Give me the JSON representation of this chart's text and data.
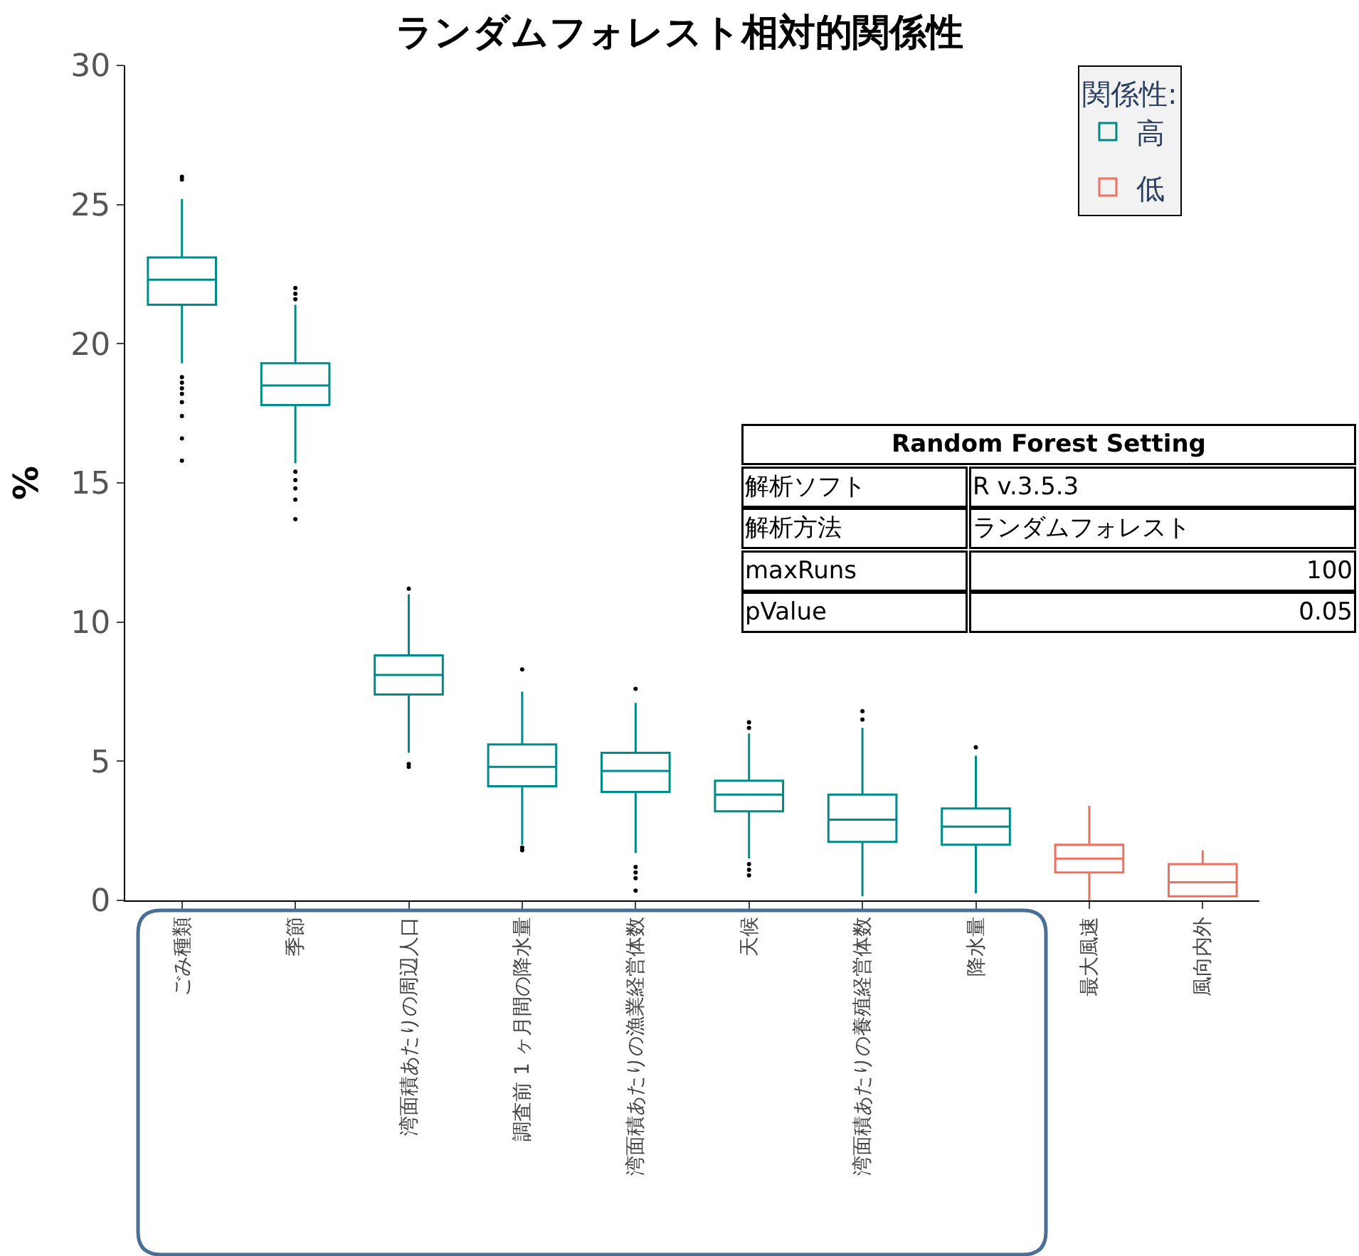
{
  "chart_data": {
    "type": "box",
    "title": "ランダムフォレスト相対的関係性",
    "ylabel": "%",
    "legend_title": "関係性:",
    "categories": [
      "ごみ種類",
      "季節",
      "湾面積あたりの周辺人口",
      "調査前 1 ヶ月間の降水量",
      "湾面積あたりの漁業経営体数",
      "天候",
      "湾面積あたりの養殖経営体数",
      "降水量",
      "最大風速",
      "風向内外"
    ],
    "ylim": [
      0,
      30
    ],
    "yticks": [
      0,
      5,
      10,
      15,
      20,
      25,
      30
    ],
    "legend": "top right",
    "series": [
      {
        "name": "高",
        "color": "#008b8b",
        "boxes": [
          {
            "low": 19.3,
            "q1": 21.4,
            "median": 22.3,
            "q3": 23.1,
            "high": 25.2,
            "outliers": [
              26.0,
              25.9,
              18.8,
              18.6,
              18.4,
              18.2,
              17.9,
              17.4,
              16.6,
              15.8
            ]
          },
          {
            "low": 15.7,
            "q1": 17.8,
            "median": 18.5,
            "q3": 19.3,
            "high": 21.4,
            "outliers": [
              21.6,
              21.8,
              22.0,
              15.4,
              15.1,
              14.8,
              14.4,
              13.7
            ]
          },
          {
            "low": 5.3,
            "q1": 7.4,
            "median": 8.1,
            "q3": 8.8,
            "high": 11.0,
            "outliers": [
              11.2,
              4.9,
              4.8
            ]
          },
          {
            "low": 2.0,
            "q1": 4.1,
            "median": 4.8,
            "q3": 5.6,
            "high": 7.5,
            "outliers": [
              8.3,
              1.9,
              1.8
            ]
          },
          {
            "low": 1.7,
            "q1": 3.9,
            "median": 4.65,
            "q3": 5.3,
            "high": 7.1,
            "outliers": [
              7.6,
              1.2,
              1.0,
              0.8,
              0.35
            ]
          },
          {
            "low": 1.5,
            "q1": 3.2,
            "median": 3.8,
            "q3": 4.3,
            "high": 6.0,
            "outliers": [
              6.2,
              6.4,
              1.3,
              1.1,
              0.9
            ]
          },
          {
            "low": 0.15,
            "q1": 2.1,
            "median": 2.9,
            "q3": 3.8,
            "high": 6.2,
            "outliers": [
              6.5,
              6.8
            ]
          },
          {
            "low": 0.25,
            "q1": 2.0,
            "median": 2.65,
            "q3": 3.3,
            "high": 5.2,
            "outliers": [
              5.5
            ]
          },
          null,
          null
        ]
      },
      {
        "name": "低",
        "color": "#f07060",
        "boxes": [
          null,
          null,
          null,
          null,
          null,
          null,
          null,
          null,
          {
            "low": 0.0,
            "q1": 1.0,
            "median": 1.5,
            "q3": 2.0,
            "high": 3.4
          },
          {
            "low": 0.15,
            "q1": 0.15,
            "median": 0.65,
            "q3": 1.3,
            "high": 1.8
          }
        ]
      }
    ],
    "annotations": [
      "Random Forest Setting",
      "解析ソフト",
      "R v.3.5.3",
      "解析方法",
      "ランダムフォレスト",
      "maxRuns",
      "100",
      "pValue",
      "0.05"
    ]
  }
}
